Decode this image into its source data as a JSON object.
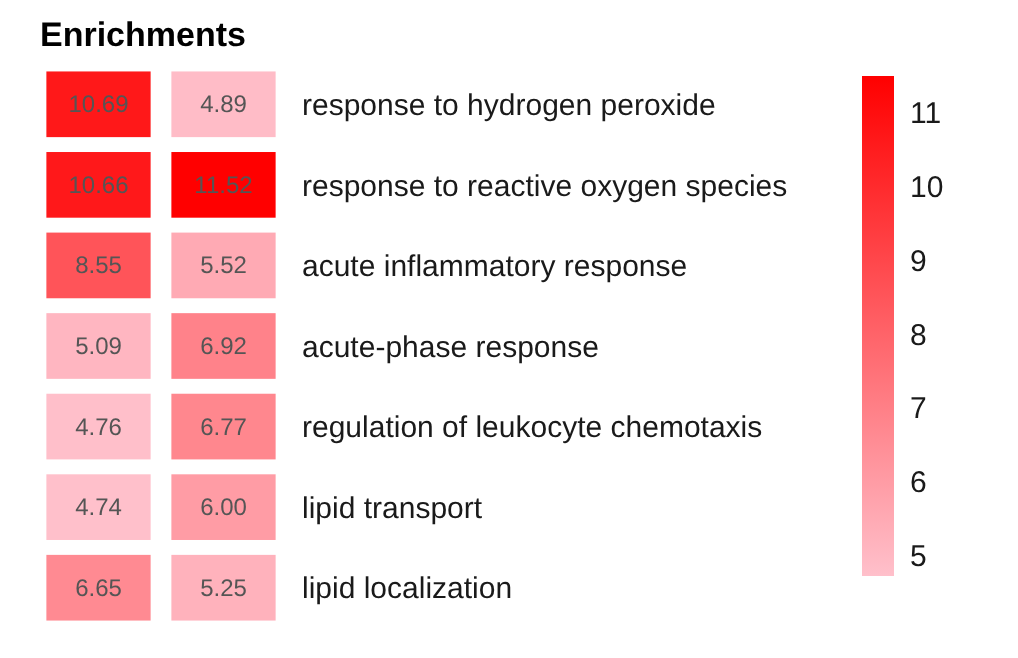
{
  "chart_data": {
    "type": "heatmap",
    "title": "Enrichments",
    "categories": [
      null,
      null
    ],
    "y_categories": [
      "response to hydrogen peroxide",
      "response to reactive oxygen species",
      "acute inflammatory response",
      "acute-phase response",
      "regulation of leukocyte chemotaxis",
      "lipid transport",
      "lipid localization"
    ],
    "cells": [
      [
        10.69,
        4.89
      ],
      [
        10.66,
        11.52
      ],
      [
        8.55,
        5.52
      ],
      [
        5.09,
        6.92
      ],
      [
        4.76,
        6.77
      ],
      [
        4.74,
        6.0
      ],
      [
        6.65,
        5.25
      ]
    ],
    "cell_labels": [
      [
        "10.69",
        "4.89"
      ],
      [
        "10.66",
        "11.52"
      ],
      [
        "8.55",
        "5.52"
      ],
      [
        "5.09",
        "6.92"
      ],
      [
        "4.76",
        "6.77"
      ],
      [
        "4.74",
        "6.00"
      ],
      [
        "6.65",
        "5.25"
      ]
    ],
    "clim": [
      4.74,
      11.52
    ],
    "cticks": [
      5,
      6,
      7,
      8,
      9,
      10,
      11
    ]
  }
}
